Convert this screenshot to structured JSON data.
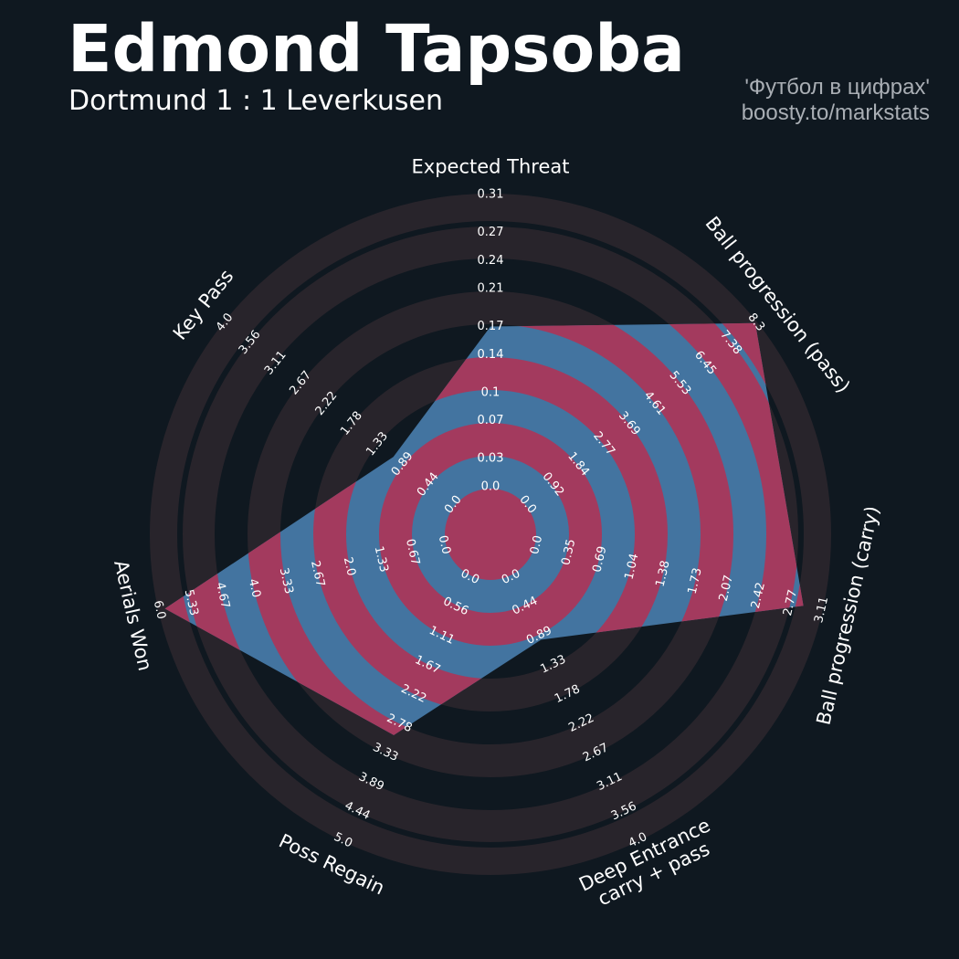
{
  "chart_data": {
    "type": "radar",
    "title": "Edmond Tapsoba",
    "subtitle": "Dortmund 1 : 1 Leverkusen",
    "credits": [
      "'Футбол в цифрах'",
      "boosty.to/markstats"
    ],
    "ring_color": "#28242b",
    "axes": [
      {
        "name": "Expected Threat",
        "lim": [
          0,
          0.31
        ],
        "ticks": [
          {
            "value": 0,
            "label": "0.0"
          },
          0.03,
          0.07,
          0.1,
          0.14,
          0.17,
          0.21,
          0.24,
          0.27,
          0.31
        ]
      },
      {
        "name": "Ball progression (pass)",
        "lim": [
          0,
          8.3
        ],
        "ticks": [
          {
            "value": 0,
            "label": "0.0"
          },
          0.92,
          1.84,
          2.77,
          3.69,
          4.61,
          5.53,
          6.45,
          7.38,
          8.3
        ]
      },
      {
        "name": "Ball progression (carry)",
        "lim": [
          0,
          3.11
        ],
        "ticks": [
          {
            "value": 0,
            "label": "0.0"
          },
          0.35,
          0.69,
          1.04,
          1.38,
          1.73,
          2.07,
          2.42,
          2.77,
          3.11
        ]
      },
      {
        "name": "Deep Entrance\ncarry + pass",
        "lim": [
          0,
          4
        ],
        "ticks": [
          {
            "value": 0,
            "label": "0.0"
          },
          0.44,
          0.89,
          1.33,
          1.78,
          2.22,
          2.67,
          3.11,
          3.56,
          {
            "value": 4,
            "label": "4.0"
          }
        ]
      },
      {
        "name": "Poss Regain",
        "lim": [
          0,
          5
        ],
        "ticks": [
          {
            "value": 0,
            "label": "0.0"
          },
          0.56,
          1.11,
          1.67,
          2.22,
          2.78,
          3.33,
          3.89,
          4.44,
          {
            "value": 5,
            "label": "5.0"
          }
        ]
      },
      {
        "name": "Aerials Won",
        "lim": [
          0,
          6
        ],
        "ticks": [
          {
            "value": 0,
            "label": "0.0"
          },
          0.67,
          1.33,
          {
            "value": 2,
            "label": "2.0"
          },
          2.67,
          3.33,
          {
            "value": 4,
            "label": "4.0"
          },
          4.67,
          5.33,
          {
            "value": 6,
            "label": "6.0"
          }
        ]
      },
      {
        "name": "Key Pass",
        "lim": [
          0,
          4
        ],
        "ticks": [
          {
            "value": 0,
            "label": "0.0"
          },
          0.44,
          0.89,
          1.33,
          1.78,
          2.22,
          2.67,
          3.11,
          3.56,
          {
            "value": 4,
            "label": "4.0"
          }
        ]
      }
    ],
    "series": [
      {
        "color": "#4374a0",
        "ring_color": "#a33a5e",
        "values": [
          0.17,
          8.27,
          2.91,
          0.95,
          3.0,
          5.88,
          1.05
        ]
      }
    ]
  }
}
